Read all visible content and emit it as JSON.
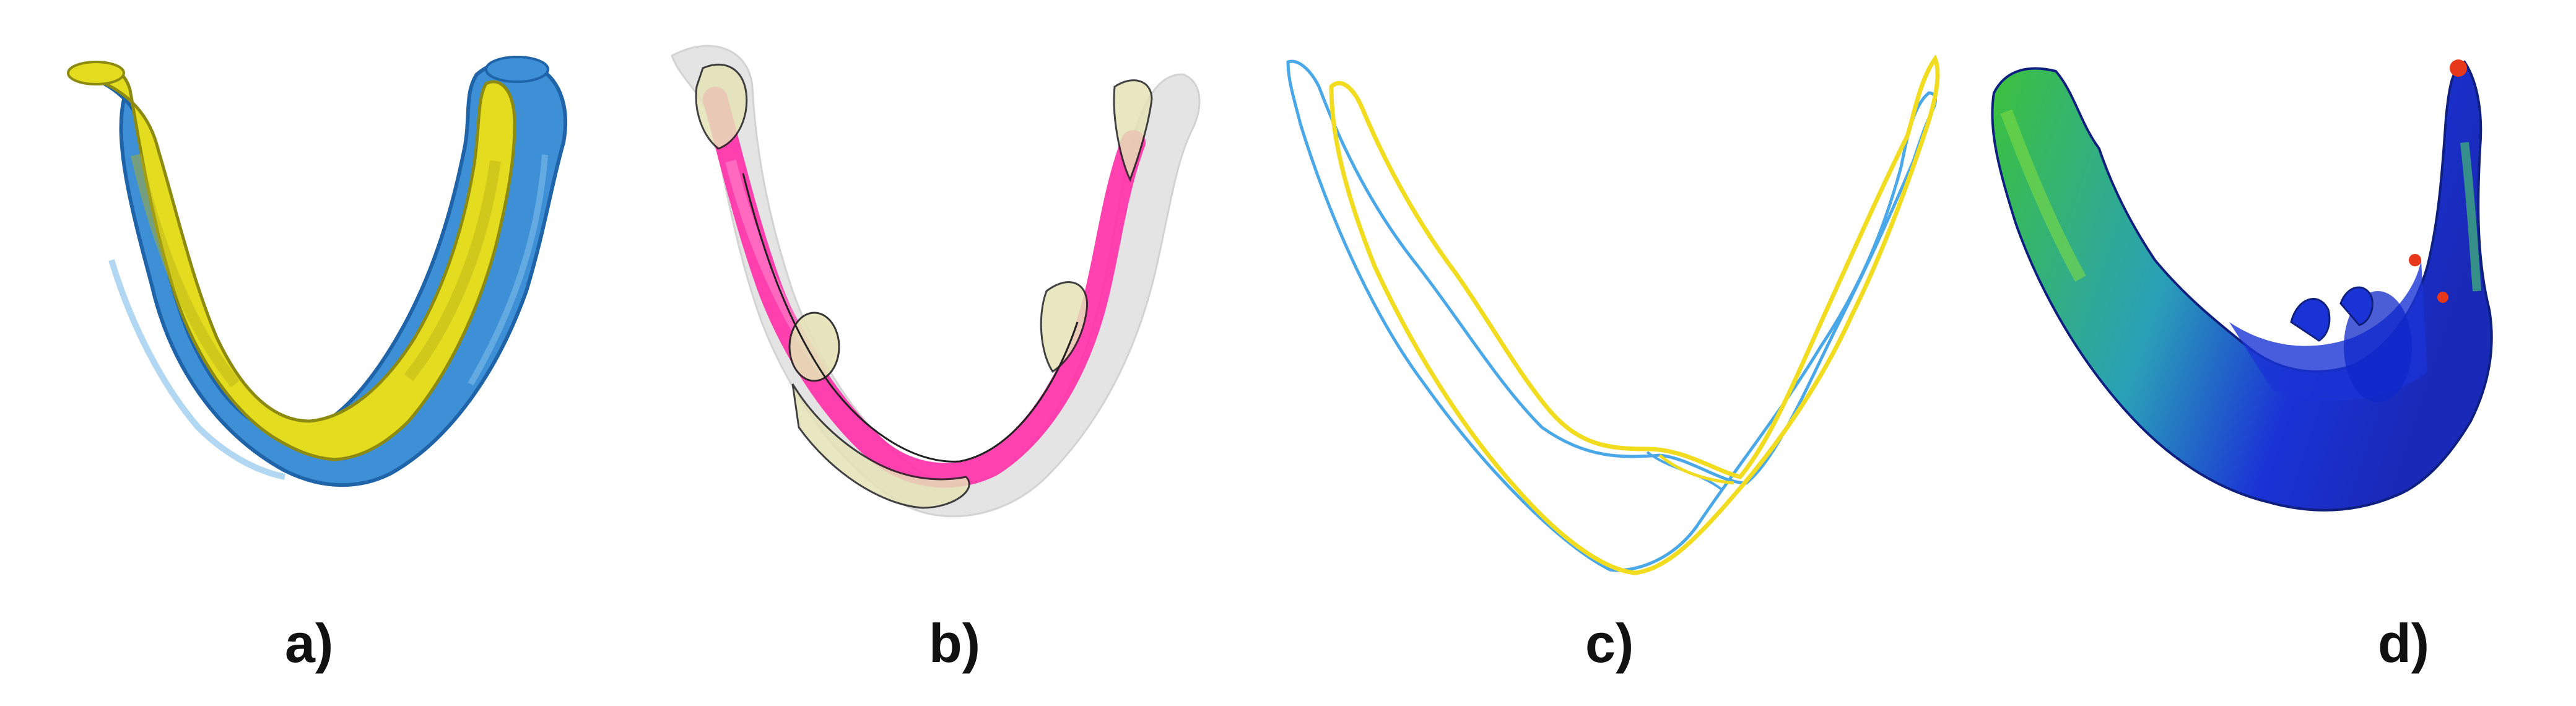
{
  "panels": [
    {
      "label": "a)",
      "render": "overlay-surface"
    },
    {
      "label": "b)",
      "render": "translucent-section"
    },
    {
      "label": "c)",
      "render": "contour-outline"
    },
    {
      "label": "d)",
      "render": "colormap-surface"
    }
  ],
  "colors": {
    "surface_blue": "#3d8fd6",
    "surface_blue_dark": "#1f63a8",
    "surface_yellow": "#e3dc1f",
    "surface_yellow_dark": "#8c8a10",
    "magenta": "#ff2ea6",
    "translucent_gray": "#cfcfcf",
    "beige": "#e6e2b8",
    "outline_black": "#222222",
    "contour_blue": "#4aa8e8",
    "contour_yellow": "#f2dc20",
    "heat_green": "#3cc23a",
    "heat_blue": "#1a33d6",
    "heat_red": "#e8381c"
  }
}
